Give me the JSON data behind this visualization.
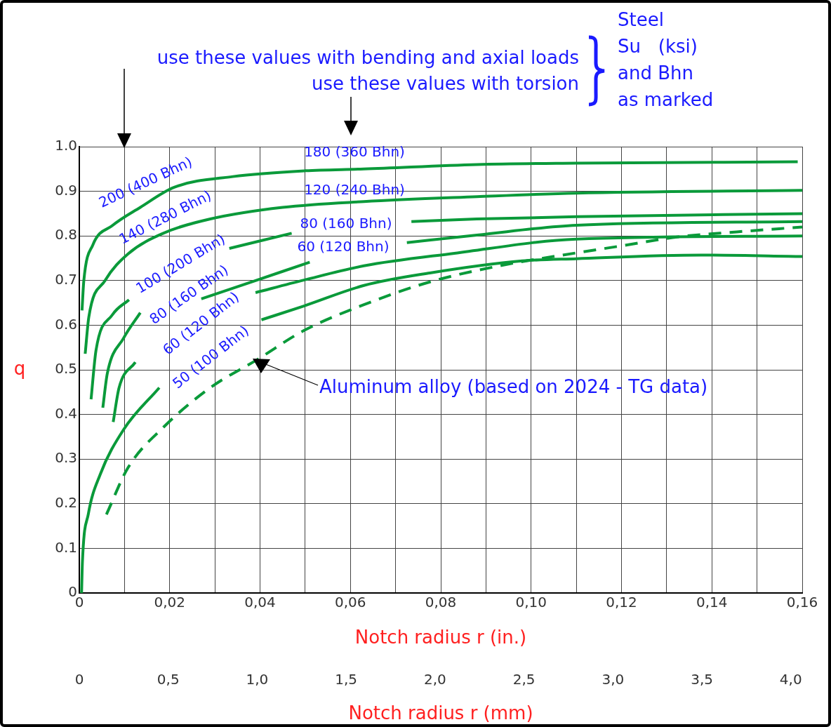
{
  "chart_data": {
    "type": "line",
    "ylabel": "q",
    "xlabel": "Notch radius r (in.)",
    "x2label": "Notch radius r (mm)",
    "xlim": [
      0,
      0.16
    ],
    "xticks": [
      0,
      {
        "value": 0.01,
        "label": null
      },
      {
        "value": 0.02,
        "label": "0,02"
      },
      {
        "value": 0.03,
        "label": null
      },
      {
        "value": 0.04,
        "label": "0,04"
      },
      {
        "value": 0.05,
        "label": null
      },
      {
        "value": 0.06,
        "label": "0,06"
      },
      {
        "value": 0.07,
        "label": null
      },
      {
        "value": 0.08,
        "label": "0,08"
      },
      {
        "value": 0.09,
        "label": null
      },
      {
        "value": 0.1,
        "label": "0,10"
      },
      {
        "value": 0.11,
        "label": null
      },
      {
        "value": 0.12,
        "label": "0,12"
      },
      {
        "value": 0.13,
        "label": null
      },
      {
        "value": 0.14,
        "label": "0,14"
      },
      {
        "value": 0.15,
        "label": null
      },
      {
        "value": 0.16,
        "label": "0,16"
      }
    ],
    "x2lim": [
      0,
      4.064
    ],
    "x2ticks": [
      0,
      {
        "value": 0.5,
        "label": "0,5"
      },
      {
        "value": 1,
        "label": "1,0"
      },
      {
        "value": 1.5,
        "label": "1,5"
      },
      {
        "value": 2,
        "label": "2,0"
      },
      {
        "value": 2.5,
        "label": "2,5"
      },
      {
        "value": 3,
        "label": "3,0"
      },
      {
        "value": 3.5,
        "label": "3,5"
      },
      {
        "value": 4,
        "label": "4,0"
      }
    ],
    "ylim": [
      0,
      1
    ],
    "yticks": [
      0,
      0.1,
      0.2,
      0.3,
      0.4,
      0.5,
      0.6,
      0.7,
      0.8,
      0.9,
      {
        "value": 1,
        "label": "1.0"
      }
    ],
    "grid": true,
    "legend": false,
    "marker": "none",
    "series": [
      {
        "color": "#0a9a3a",
        "line_style": "solid",
        "x": [
          0.0006,
          0.001,
          0.003,
          0.0073,
          0.0135,
          0.021,
          0.034,
          0.05,
          0.063,
          0.088,
          0.11,
          0.159
        ],
        "values": [
          0.633,
          0.7,
          0.78,
          0.823,
          0.864,
          0.909,
          0.933,
          0.946,
          0.95,
          0.96,
          0.963,
          0.966
        ]
      },
      {
        "color": "#0a9a3a",
        "line_style": "solid",
        "x": [
          0.0013,
          0.0021,
          0.0057,
          0.0108,
          0.0186,
          0.029,
          0.045,
          0.063,
          0.088,
          0.11,
          0.16
        ],
        "values": [
          0.536,
          0.618,
          0.7,
          0.76,
          0.806,
          0.838,
          0.864,
          0.877,
          0.888,
          0.896,
          0.902
        ]
      },
      {
        "color": "#0a9a3a",
        "line_style": "solid",
        "x": [
          0.0026,
          0.0037,
          0.0073,
          0.011,
          0.022,
          0.0332,
          0.047,
          0.06,
          0.0735,
          0.088,
          0.11,
          0.16
        ],
        "values": [
          0.434,
          0.544,
          0.623,
          0.657,
          null,
          0.772,
          0.806,
          null,
          0.832,
          0.838,
          0.843,
          0.85
        ]
      },
      {
        "color": "#0a9a3a",
        "line_style": "solid",
        "x": [
          0.0052,
          0.0062,
          0.0098,
          0.0135,
          0.02,
          0.027,
          0.039,
          0.051,
          0.062,
          0.0725,
          0.088,
          0.11,
          0.16
        ],
        "values": [
          0.415,
          0.492,
          0.571,
          0.628,
          null,
          0.659,
          0.7,
          0.741,
          null,
          0.785,
          0.802,
          0.824,
          0.832
        ]
      },
      {
        "color": "#0a9a3a",
        "line_style": "solid",
        "x": [
          0.0075,
          0.0088,
          0.0124,
          0.025,
          0.039,
          0.0497,
          0.063,
          0.083,
          0.11,
          0.16
        ],
        "values": [
          0.383,
          0.46,
          0.517,
          null,
          0.673,
          0.701,
          0.733,
          0.761,
          0.793,
          0.8
        ]
      },
      {
        "color": "#0a9a3a",
        "line_style": "solid",
        "x": [
          0.0005,
          0.0007,
          0.002,
          0.0046,
          0.0098,
          0.0177,
          0.03,
          0.0403,
          0.0497,
          0.063,
          0.0776,
          0.098,
          0.11,
          0.1377,
          0.16
        ],
        "values": [
          0,
          0.072,
          0.177,
          0.265,
          0.366,
          0.46,
          null,
          0.612,
          0.643,
          0.689,
          0.717,
          0.744,
          0.749,
          0.757,
          0.754
        ]
      },
      {
        "color": "#0a9a3a",
        "line_style": "dashed",
        "x": [
          0.006,
          0.0108,
          0.0186,
          0.029,
          0.0394,
          0.0497,
          0.063,
          0.0776,
          0.093,
          0.11,
          0.1195,
          0.1326,
          0.1455,
          0.16
        ],
        "values": [
          0.176,
          0.281,
          0.371,
          0.46,
          0.523,
          0.588,
          0.646,
          0.697,
          0.733,
          0.762,
          0.777,
          0.798,
          0.809,
          0.82
        ]
      }
    ],
    "annotations": [
      "use these values with bending and axial loads",
      "use these values with torsion",
      "Steel\nSu   (ksi)\nand Bhn\nas marked",
      "200 (400 Bhn)",
      "140 (280 Bhn)",
      "100 (200 Bhn)",
      "80 (160 Bhn)",
      "60 (120 Bhn)",
      "50 (100 Bhn)",
      "180 (360 Bhn)",
      "120 (240 Bhn)",
      "80 (160 Bhn)",
      "60 (120 Bhn)",
      "Aluminum alloy (based on 2024 - TG data)"
    ]
  }
}
